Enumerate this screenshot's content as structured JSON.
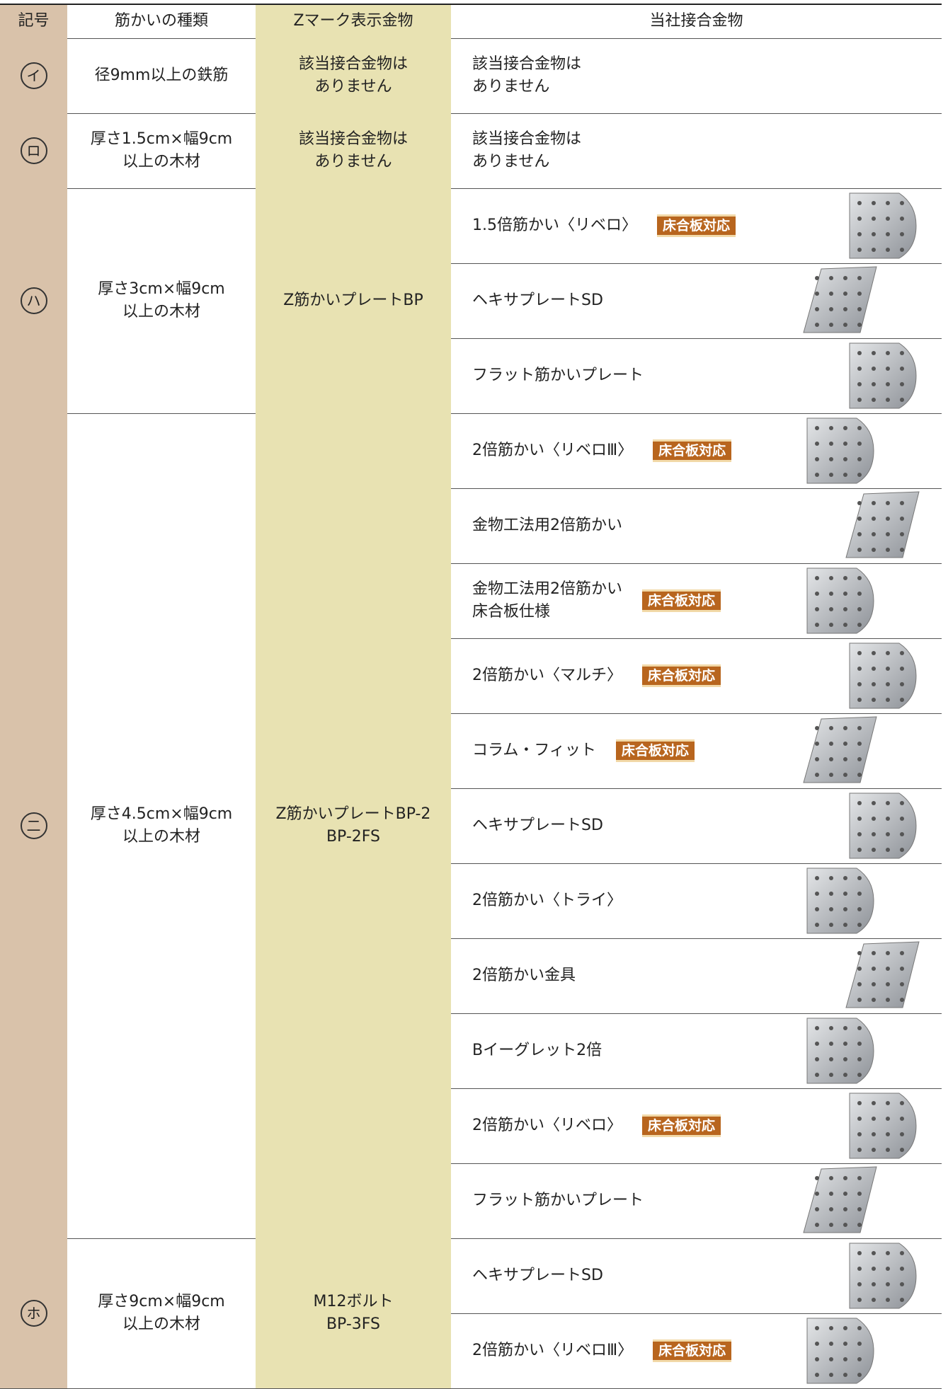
{
  "table": {
    "header": [
      "記号",
      "筋かいの種類",
      "Zマーク表示金物",
      "当社接合金物"
    ],
    "rows": [
      {
        "symbol": "イ",
        "type": "径9mm以上の鉄筋",
        "zmark": "該当接合金物は\nありません",
        "products": [
          {
            "name": "該当接合金物は\nありません"
          }
        ]
      },
      {
        "symbol": "ロ",
        "type": "厚さ1.5cm×幅9cm\n以上の木材",
        "zmark": "該当接合金物は\nありません",
        "products": [
          {
            "name": "該当接合金物は\nありません"
          }
        ]
      },
      {
        "symbol": "ハ",
        "type": "厚さ3cm×幅9cm\n以上の木材",
        "zmark": "Z筋かいプレートBP",
        "products": [
          {
            "name": "1.5倍筋かい〈リベロ〉",
            "badge": "床合板対応"
          },
          {
            "name": "ヘキサプレートSD"
          },
          {
            "name": "フラット筋かいプレート"
          }
        ]
      },
      {
        "symbol": "二",
        "type": "厚さ4.5cm×幅9cm\n以上の木材",
        "zmark": "Z筋かいプレートBP-2\nBP-2FS",
        "products": [
          {
            "name": "2倍筋かい〈リベロⅢ〉",
            "badge": "床合板対応"
          },
          {
            "name": "金物工法用2倍筋かい"
          },
          {
            "name": "金物工法用2倍筋かい\n床合板仕様",
            "badge": "床合板対応"
          },
          {
            "name": "2倍筋かい〈マルチ〉",
            "badge": "床合板対応"
          },
          {
            "name": "コラム・フィット",
            "badge": "床合板対応"
          },
          {
            "name": "ヘキサプレートSD"
          },
          {
            "name": "2倍筋かい〈トライ〉"
          },
          {
            "name": "2倍筋かい金具"
          },
          {
            "name": "Bイーグレット2倍"
          },
          {
            "name": "2倍筋かい〈リベロ〉",
            "badge": "床合板対応"
          },
          {
            "name": "フラット筋かいプレート"
          }
        ]
      },
      {
        "symbol": "ホ",
        "type": "厚さ9cm×幅9cm\n以上の木材",
        "zmark": "M12ボルト\nBP-3FS",
        "products": [
          {
            "name": "ヘキサプレートSD"
          },
          {
            "name": "2倍筋かい〈リベロⅢ〉",
            "badge": "床合板対応"
          }
        ]
      }
    ]
  }
}
